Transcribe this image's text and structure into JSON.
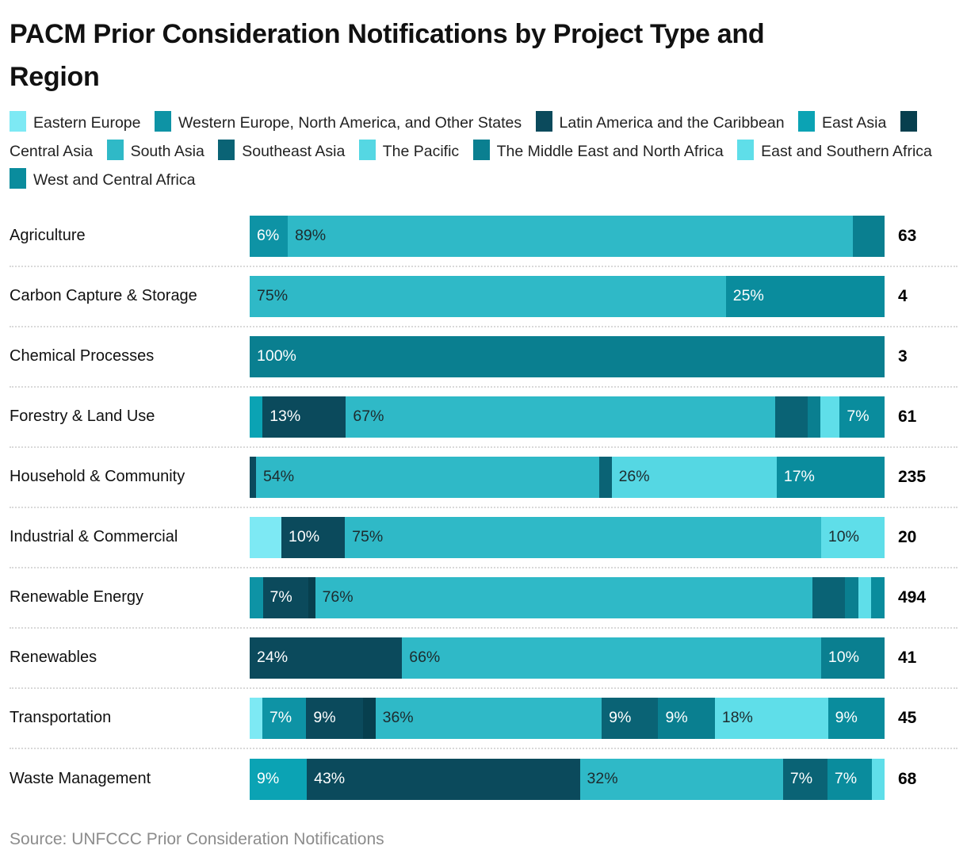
{
  "chart_data": {
    "type": "bar",
    "stacked": true,
    "orientation": "horizontal",
    "value_format": "percent",
    "title": "PACM Prior Consideration Notifications by Project Type and Region",
    "source": "Source: UNFCCC Prior Consideration Notifications",
    "legend_position": "top",
    "legend": [
      {
        "id": "eastern-europe",
        "label": "Eastern Europe",
        "color": "#7DE9F4"
      },
      {
        "id": "western-europe-na-other",
        "label": "Western Europe, North America, and Other States",
        "color": "#0E93A5"
      },
      {
        "id": "latin-america-caribbean",
        "label": "Latin America and the Caribbean",
        "color": "#0B4A5C"
      },
      {
        "id": "east-asia",
        "label": "East Asia",
        "color": "#0BA3B4"
      },
      {
        "id": "central-asia",
        "label": "Central Asia",
        "color": "#073F4E"
      },
      {
        "id": "south-asia",
        "label": "South Asia",
        "color": "#2FB9C7"
      },
      {
        "id": "southeast-asia",
        "label": "Southeast Asia",
        "color": "#0A6375"
      },
      {
        "id": "pacific",
        "label": "The Pacific",
        "color": "#55D7E3"
      },
      {
        "id": "middle-east-north-africa",
        "label": "The Middle East and North Africa",
        "color": "#0A7F90"
      },
      {
        "id": "east-southern-africa",
        "label": "East and Southern Africa",
        "color": "#5FDEE9"
      },
      {
        "id": "west-central-africa",
        "label": "West and Central Africa",
        "color": "#0A8C9D"
      }
    ],
    "rows": [
      {
        "label": "Agriculture",
        "total": "63",
        "segments": [
          {
            "region": "western-europe-na-other",
            "pct": 6,
            "label": "6%"
          },
          {
            "region": "south-asia",
            "pct": 89,
            "label": "89%"
          },
          {
            "region": "middle-east-north-africa",
            "pct": 5,
            "label": ""
          }
        ]
      },
      {
        "label": "Carbon Capture & Storage",
        "total": "4",
        "segments": [
          {
            "region": "south-asia",
            "pct": 75,
            "label": "75%"
          },
          {
            "region": "west-central-africa",
            "pct": 25,
            "label": "25%"
          }
        ]
      },
      {
        "label": "Chemical Processes",
        "total": "3",
        "segments": [
          {
            "region": "middle-east-north-africa",
            "pct": 100,
            "label": "100%"
          }
        ]
      },
      {
        "label": "Forestry & Land Use",
        "total": "61",
        "segments": [
          {
            "region": "east-asia",
            "pct": 2,
            "label": ""
          },
          {
            "region": "latin-america-caribbean",
            "pct": 13,
            "label": "13%"
          },
          {
            "region": "south-asia",
            "pct": 67,
            "label": "67%"
          },
          {
            "region": "southeast-asia",
            "pct": 5,
            "label": ""
          },
          {
            "region": "middle-east-north-africa",
            "pct": 2,
            "label": ""
          },
          {
            "region": "east-southern-africa",
            "pct": 3,
            "label": ""
          },
          {
            "region": "west-central-africa",
            "pct": 7,
            "label": "7%"
          }
        ]
      },
      {
        "label": "Household & Community",
        "total": "235",
        "segments": [
          {
            "region": "latin-america-caribbean",
            "pct": 1,
            "label": ""
          },
          {
            "region": "south-asia",
            "pct": 54,
            "label": "54%"
          },
          {
            "region": "southeast-asia",
            "pct": 2,
            "label": ""
          },
          {
            "region": "pacific",
            "pct": 26,
            "label": "26%"
          },
          {
            "region": "west-central-africa",
            "pct": 17,
            "label": "17%"
          }
        ]
      },
      {
        "label": "Industrial & Commercial",
        "total": "20",
        "segments": [
          {
            "region": "eastern-europe",
            "pct": 5,
            "label": ""
          },
          {
            "region": "latin-america-caribbean",
            "pct": 10,
            "label": "10%"
          },
          {
            "region": "south-asia",
            "pct": 75,
            "label": "75%"
          },
          {
            "region": "east-southern-africa",
            "pct": 10,
            "label": "10%"
          }
        ]
      },
      {
        "label": "Renewable Energy",
        "total": "494",
        "segments": [
          {
            "region": "western-europe-na-other",
            "pct": 2,
            "label": ""
          },
          {
            "region": "latin-america-caribbean",
            "pct": 7,
            "label": "7%"
          },
          {
            "region": "central-asia",
            "pct": 1,
            "label": ""
          },
          {
            "region": "south-asia",
            "pct": 76,
            "label": "76%"
          },
          {
            "region": "southeast-asia",
            "pct": 5,
            "label": ""
          },
          {
            "region": "middle-east-north-africa",
            "pct": 2,
            "label": ""
          },
          {
            "region": "east-southern-africa",
            "pct": 2,
            "label": ""
          },
          {
            "region": "west-central-africa",
            "pct": 2,
            "label": ""
          }
        ]
      },
      {
        "label": "Renewables",
        "total": "41",
        "segments": [
          {
            "region": "latin-america-caribbean",
            "pct": 24,
            "label": "24%"
          },
          {
            "region": "south-asia",
            "pct": 66,
            "label": "66%"
          },
          {
            "region": "middle-east-north-africa",
            "pct": 10,
            "label": "10%"
          }
        ]
      },
      {
        "label": "Transportation",
        "total": "45",
        "segments": [
          {
            "region": "eastern-europe",
            "pct": 2,
            "label": ""
          },
          {
            "region": "western-europe-na-other",
            "pct": 7,
            "label": "7%"
          },
          {
            "region": "latin-america-caribbean",
            "pct": 9,
            "label": "9%"
          },
          {
            "region": "central-asia",
            "pct": 2,
            "label": ""
          },
          {
            "region": "south-asia",
            "pct": 36,
            "label": "36%"
          },
          {
            "region": "southeast-asia",
            "pct": 9,
            "label": "9%"
          },
          {
            "region": "middle-east-north-africa",
            "pct": 9,
            "label": "9%"
          },
          {
            "region": "east-southern-africa",
            "pct": 18,
            "label": "18%"
          },
          {
            "region": "west-central-africa",
            "pct": 9,
            "label": "9%"
          }
        ]
      },
      {
        "label": "Waste Management",
        "total": "68",
        "segments": [
          {
            "region": "east-asia",
            "pct": 9,
            "label": "9%"
          },
          {
            "region": "latin-america-caribbean",
            "pct": 43,
            "label": "43%"
          },
          {
            "region": "south-asia",
            "pct": 32,
            "label": "32%"
          },
          {
            "region": "southeast-asia",
            "pct": 7,
            "label": "7%"
          },
          {
            "region": "west-central-africa",
            "pct": 7,
            "label": "7%"
          },
          {
            "region": "east-southern-africa",
            "pct": 2,
            "label": ""
          }
        ]
      }
    ]
  }
}
